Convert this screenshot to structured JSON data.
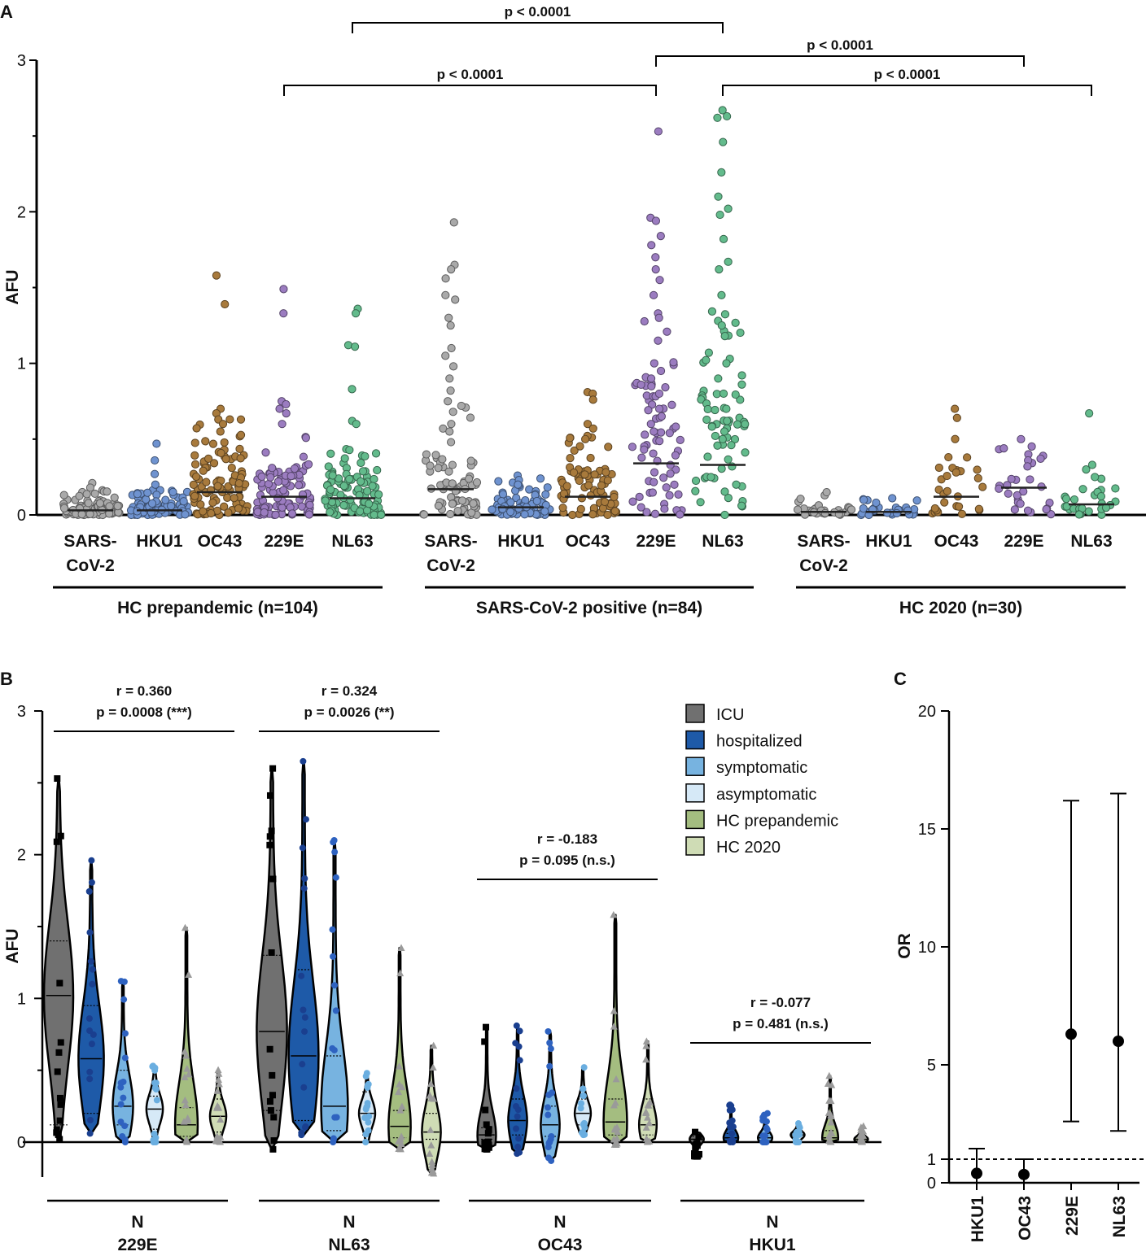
{
  "colors": {
    "SARS-CoV-2": "#a9a9a9",
    "HKU1": "#6f93d0",
    "OC43": "#a87a3c",
    "229E": "#9b7cc0",
    "NL63": "#63bb8c",
    "ICU": "#707070",
    "hospitalized": "#1e5aa8",
    "symptomatic": "#77b3e0",
    "asymptomatic": "#d6e9f7",
    "HC prepandemic": "#a4bd80",
    "HC 2020": "#cfdcb5"
  },
  "chart_data": [
    {
      "panel": "A",
      "type": "scatter",
      "ylabel": "AFU",
      "ylim": [
        0,
        3
      ],
      "yticks": [
        "0",
        "1",
        "2",
        "3"
      ],
      "groups": [
        {
          "label": "HC prepandemic (n=104)",
          "columns": [
            {
              "virus": "SARS-CoV-2",
              "label_lines": [
                "SARS-",
                "CoV-2"
              ],
              "median": 0.03,
              "max": 0.21,
              "highlights": [
                0.21,
                0.18,
                0.14
              ]
            },
            {
              "virus": "HKU1",
              "label_lines": [
                "HKU1"
              ],
              "median": 0.03,
              "max": 0.47,
              "highlights": [
                0.47,
                0.36,
                0.27,
                0.2
              ]
            },
            {
              "virus": "OC43",
              "label_lines": [
                "OC43"
              ],
              "median": 0.15,
              "max": 1.58,
              "highlights": [
                1.58,
                1.39,
                0.7,
                0.67,
                0.63,
                0.6,
                0.55
              ]
            },
            {
              "virus": "229E",
              "label_lines": [
                "229E"
              ],
              "median": 0.12,
              "max": 1.49,
              "highlights": [
                1.49,
                1.33,
                0.75,
                0.73,
                0.7,
                0.67,
                0.6
              ]
            },
            {
              "virus": "NL63",
              "label_lines": [
                "NL63"
              ],
              "median": 0.11,
              "max": 1.36,
              "highlights": [
                1.36,
                1.33,
                1.12,
                1.11,
                0.83,
                0.62,
                0.6
              ]
            }
          ]
        },
        {
          "label": "SARS-CoV-2 positive (n=84)",
          "columns": [
            {
              "virus": "SARS-CoV-2",
              "label_lines": [
                "SARS-",
                "CoV-2"
              ],
              "median": 0.17,
              "max": 1.93,
              "highlights": [
                1.93,
                1.65,
                1.62,
                1.56,
                1.45,
                1.42,
                1.3,
                1.25,
                1.1,
                1.05,
                0.98,
                0.9,
                0.82,
                0.75,
                0.68,
                0.6,
                0.55,
                0.48
              ]
            },
            {
              "virus": "HKU1",
              "label_lines": [
                "HKU1"
              ],
              "median": 0.05,
              "max": 0.26,
              "highlights": [
                0.26,
                0.23,
                0.2
              ]
            },
            {
              "virus": "OC43",
              "label_lines": [
                "OC43"
              ],
              "median": 0.12,
              "max": 0.81,
              "highlights": [
                0.81,
                0.8,
                0.76,
                0.6,
                0.57,
                0.5
              ]
            },
            {
              "virus": "229E",
              "label_lines": [
                "229E"
              ],
              "median": 0.34,
              "max": 2.53,
              "highlights": [
                2.53,
                1.96,
                1.94,
                1.84,
                1.78,
                1.7,
                1.62,
                1.55,
                1.45,
                1.33,
                1.3,
                1.15,
                1.0,
                0.95,
                0.9,
                0.8,
                0.7,
                0.65,
                0.6,
                0.55
              ]
            },
            {
              "virus": "NL63",
              "label_lines": [
                "NL63"
              ],
              "median": 0.33,
              "max": 2.67,
              "highlights": [
                2.67,
                2.63,
                2.62,
                2.46,
                2.26,
                2.1,
                2.02,
                1.98,
                1.82,
                1.67,
                1.62,
                1.45,
                1.28,
                1.25,
                1.18,
                1.0,
                0.9,
                0.8,
                0.7,
                0.62,
                0.55,
                0.5
              ]
            }
          ]
        },
        {
          "label": "HC 2020 (n=30)",
          "columns": [
            {
              "virus": "SARS-CoV-2",
              "label_lines": [
                "SARS-",
                "CoV-2"
              ],
              "median": 0.02,
              "max": 0.15,
              "highlights": [
                0.15
              ]
            },
            {
              "virus": "HKU1",
              "label_lines": [
                "HKU1"
              ],
              "median": 0.02,
              "max": 0.11,
              "highlights": [
                0.11
              ]
            },
            {
              "virus": "OC43",
              "label_lines": [
                "OC43"
              ],
              "median": 0.12,
              "max": 0.7,
              "highlights": [
                0.7,
                0.64,
                0.31,
                0.28
              ]
            },
            {
              "virus": "229E",
              "label_lines": [
                "229E"
              ],
              "median": 0.18,
              "max": 0.5,
              "highlights": [
                0.5,
                0.4,
                0.36,
                0.32
              ]
            },
            {
              "virus": "NL63",
              "label_lines": [
                "NL63"
              ],
              "median": 0.07,
              "max": 0.67,
              "highlights": [
                0.67,
                0.33,
                0.3,
                0.25
              ]
            }
          ]
        }
      ],
      "comparisons": [
        {
          "text": "p < 0.0001",
          "from": [
            0,
            4
          ],
          "to": [
            1,
            4
          ],
          "level": 3
        },
        {
          "text": "p < 0.0001",
          "from": [
            1,
            3
          ],
          "to": [
            2,
            3
          ],
          "level": 2
        },
        {
          "text": "p < 0.0001",
          "from": [
            0,
            3
          ],
          "to": [
            1,
            3
          ],
          "level": 1
        },
        {
          "text": "p < 0.0001",
          "from": [
            1,
            4
          ],
          "to": [
            2,
            4
          ],
          "level": 1
        }
      ]
    },
    {
      "panel": "B",
      "type": "violin",
      "ylabel": "AFU",
      "ylim": [
        -0.25,
        3
      ],
      "yticks": [
        "0",
        "1",
        "2",
        "3"
      ],
      "categories_order": [
        "ICU",
        "hospitalized",
        "symptomatic",
        "asymptomatic",
        "HC prepandemic",
        "HC 2020"
      ],
      "groups": [
        {
          "label_top": "N",
          "label_bottom": "229E",
          "r": "r = 0.360",
          "p": "p = 0.0008 (***)",
          "violins": [
            {
              "cat": "ICU",
              "min": 0.02,
              "max": 2.53,
              "median": 1.02,
              "q1": 0.12,
              "q3": 1.4
            },
            {
              "cat": "hospitalized",
              "min": 0.06,
              "max": 1.96,
              "median": 0.58,
              "q1": 0.2,
              "q3": 0.95
            },
            {
              "cat": "symptomatic",
              "min": 0.0,
              "max": 1.12,
              "median": 0.25,
              "q1": 0.12,
              "q3": 0.5
            },
            {
              "cat": "asymptomatic",
              "min": 0.0,
              "max": 0.53,
              "median": 0.23,
              "q1": 0.09,
              "q3": 0.32
            },
            {
              "cat": "HC prepandemic",
              "min": 0.0,
              "max": 1.49,
              "median": 0.12,
              "q1": 0.04,
              "q3": 0.24
            },
            {
              "cat": "HC 2020",
              "min": 0.0,
              "max": 0.5,
              "median": 0.18,
              "q1": 0.07,
              "q3": 0.3
            }
          ]
        },
        {
          "label_top": "N",
          "label_bottom": "NL63",
          "r": "r = 0.324",
          "p": "p = 0.0026 (**)",
          "violins": [
            {
              "cat": "ICU",
              "min": -0.05,
              "max": 2.6,
              "median": 0.77,
              "q1": 0.22,
              "q3": 1.3
            },
            {
              "cat": "hospitalized",
              "min": 0.05,
              "max": 2.65,
              "median": 0.6,
              "q1": 0.15,
              "q3": 1.2
            },
            {
              "cat": "symptomatic",
              "min": 0.0,
              "max": 2.1,
              "median": 0.25,
              "q1": 0.08,
              "q3": 0.6
            },
            {
              "cat": "asymptomatic",
              "min": 0.0,
              "max": 0.48,
              "median": 0.2,
              "q1": 0.05,
              "q3": 0.35
            },
            {
              "cat": "HC prepandemic",
              "min": -0.05,
              "max": 1.35,
              "median": 0.11,
              "q1": 0.03,
              "q3": 0.22
            },
            {
              "cat": "HC 2020",
              "min": -0.22,
              "max": 0.67,
              "median": 0.07,
              "q1": 0.02,
              "q3": 0.2
            }
          ]
        },
        {
          "label_top": "N",
          "label_bottom": "OC43",
          "r": "r = -0.183",
          "p": "p = 0.095 (n.s.)",
          "violins": [
            {
              "cat": "ICU",
              "min": -0.05,
              "max": 0.8,
              "median": 0.05,
              "q1": 0.02,
              "q3": 0.1
            },
            {
              "cat": "hospitalized",
              "min": -0.08,
              "max": 0.81,
              "median": 0.15,
              "q1": 0.05,
              "q3": 0.3
            },
            {
              "cat": "symptomatic",
              "min": -0.13,
              "max": 0.77,
              "median": 0.12,
              "q1": 0.04,
              "q3": 0.25
            },
            {
              "cat": "asymptomatic",
              "min": 0.05,
              "max": 0.52,
              "median": 0.2,
              "q1": 0.12,
              "q3": 0.3
            },
            {
              "cat": "HC prepandemic",
              "min": -0.02,
              "max": 1.58,
              "median": 0.14,
              "q1": 0.05,
              "q3": 0.3
            },
            {
              "cat": "HC 2020",
              "min": 0.0,
              "max": 0.7,
              "median": 0.12,
              "q1": 0.05,
              "q3": 0.3
            }
          ]
        },
        {
          "label_top": "N",
          "label_bottom": "HKU1",
          "r": "r = -0.077",
          "p": "p = 0.481 (n.s.)",
          "violins": [
            {
              "cat": "ICU",
              "min": -0.1,
              "max": 0.07,
              "median": 0.02,
              "q1": 0.0,
              "q3": 0.04
            },
            {
              "cat": "hospitalized",
              "min": 0.0,
              "max": 0.26,
              "median": 0.03,
              "q1": 0.01,
              "q3": 0.06
            },
            {
              "cat": "symptomatic",
              "min": 0.0,
              "max": 0.2,
              "median": 0.03,
              "q1": 0.01,
              "q3": 0.06
            },
            {
              "cat": "asymptomatic",
              "min": 0.0,
              "max": 0.13,
              "median": 0.05,
              "q1": 0.02,
              "q3": 0.08
            },
            {
              "cat": "HC prepandemic",
              "min": 0.0,
              "max": 0.46,
              "median": 0.03,
              "q1": 0.01,
              "q3": 0.08
            },
            {
              "cat": "HC 2020",
              "min": 0.0,
              "max": 0.11,
              "median": 0.02,
              "q1": 0.01,
              "q3": 0.04
            }
          ]
        }
      ]
    },
    {
      "panel": "C",
      "type": "scatter",
      "ylabel": "OR",
      "ylim": [
        0,
        20
      ],
      "yticks": [
        "0",
        "1",
        "5",
        "10",
        "15",
        "20"
      ],
      "reference_line": 1,
      "categories": [
        "HKU1",
        "OC43",
        "229E",
        "NL63"
      ],
      "or": [
        0.4,
        0.35,
        6.3,
        6.0
      ],
      "ci_low": [
        0.0,
        0.0,
        2.6,
        2.2
      ],
      "ci_high": [
        1.45,
        1.0,
        16.2,
        16.5
      ]
    }
  ],
  "legend": [
    {
      "label": "ICU",
      "color_key": "ICU"
    },
    {
      "label": "hospitalized",
      "color_key": "hospitalized"
    },
    {
      "label": "symptomatic",
      "color_key": "symptomatic"
    },
    {
      "label": "asymptomatic",
      "color_key": "asymptomatic"
    },
    {
      "label": "HC prepandemic",
      "color_key": "HC prepandemic"
    },
    {
      "label": "HC 2020",
      "color_key": "HC 2020"
    }
  ],
  "panel_labels": {
    "a": "A",
    "b": "B",
    "c": "C"
  }
}
